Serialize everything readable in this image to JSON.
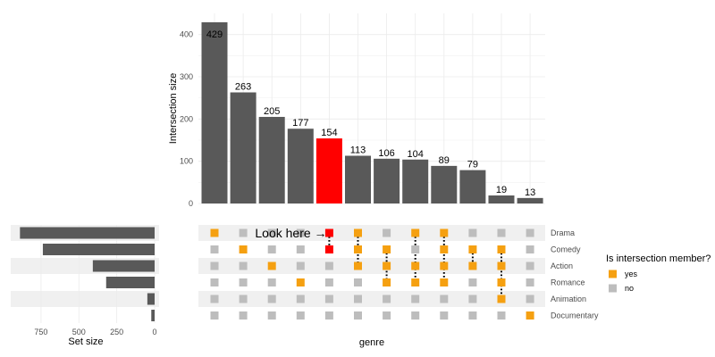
{
  "chart_data": {
    "type": "bar",
    "intersections": [
      {
        "sets": [
          "Drama"
        ],
        "size": 429
      },
      {
        "sets": [
          "Comedy"
        ],
        "size": 263
      },
      {
        "sets": [
          "Action"
        ],
        "size": 205
      },
      {
        "sets": [
          "Romance"
        ],
        "size": 177
      },
      {
        "sets": [
          "Drama",
          "Comedy"
        ],
        "size": 154,
        "highlight": true
      },
      {
        "sets": [
          "Drama",
          "Comedy",
          "Action"
        ],
        "size": 113
      },
      {
        "sets": [
          "Comedy",
          "Action",
          "Romance"
        ],
        "size": 106
      },
      {
        "sets": [
          "Drama",
          "Action",
          "Romance"
        ],
        "size": 104
      },
      {
        "sets": [
          "Drama",
          "Comedy",
          "Action",
          "Romance"
        ],
        "size": 89
      },
      {
        "sets": [
          "Comedy",
          "Action"
        ],
        "size": 79
      },
      {
        "sets": [
          "Comedy",
          "Action",
          "Romance",
          "Animation"
        ],
        "size": 19
      },
      {
        "sets": [
          "Documentary"
        ],
        "size": 13
      }
    ],
    "sets": [
      "Drama",
      "Comedy",
      "Action",
      "Romance",
      "Animation",
      "Documentary"
    ],
    "set_sizes": [
      889,
      738,
      408,
      320,
      48,
      22
    ],
    "intersection_axis": {
      "label": "Intersection size",
      "ticks": [
        0,
        100,
        200,
        300,
        400
      ],
      "ylim": [
        0,
        450
      ]
    },
    "set_size_axis": {
      "label": "Set size",
      "ticks": [
        750,
        500,
        250,
        0
      ],
      "reversed": true,
      "xlim": [
        0,
        950
      ]
    },
    "matrix_xlabel": "genre",
    "legend": {
      "title": "Is intersection member?",
      "entries": [
        "yes",
        "no"
      ],
      "placement": "right"
    },
    "annotation": {
      "text": "Look here →"
    },
    "colors": {
      "bar": "#595959",
      "highlight": "#ff0000",
      "member": "#f5a011",
      "nonmember": "#bdbdbd",
      "stripe": "#f0f0f0",
      "grid": "#ebebeb"
    },
    "grid": true
  }
}
